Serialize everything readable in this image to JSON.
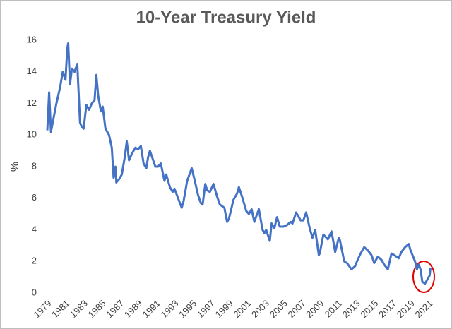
{
  "chart_data": {
    "type": "line",
    "title": "10-Year Treasury Yield",
    "y_label": "%",
    "x": [
      1979.0,
      1979.2,
      1979.4,
      1980.0,
      1980.4,
      1980.7,
      1981.0,
      1981.2,
      1981.3,
      1981.5,
      1981.7,
      1982.0,
      1982.3,
      1982.6,
      1982.8,
      1983.0,
      1983.3,
      1983.6,
      1983.9,
      1984.2,
      1984.4,
      1984.6,
      1984.9,
      1985.1,
      1985.4,
      1985.8,
      1986.1,
      1986.3,
      1986.5,
      1986.6,
      1986.9,
      1987.2,
      1987.5,
      1987.75,
      1988.0,
      1988.3,
      1988.7,
      1989.0,
      1989.3,
      1989.6,
      1989.9,
      1990.1,
      1990.3,
      1990.6,
      1990.9,
      1991.2,
      1991.5,
      1991.9,
      1992.1,
      1992.5,
      1992.8,
      1993.0,
      1993.4,
      1993.8,
      1994.0,
      1994.4,
      1994.9,
      1995.2,
      1995.6,
      1995.9,
      1996.1,
      1996.4,
      1996.6,
      1996.9,
      1997.3,
      1997.7,
      1998.0,
      1998.5,
      1998.8,
      1999.0,
      1999.5,
      1999.9,
      2000.1,
      2000.5,
      2000.9,
      2001.2,
      2001.5,
      2001.8,
      2002.1,
      2002.3,
      2002.7,
      2002.9,
      2003.1,
      2003.5,
      2003.7,
      2004.0,
      2004.3,
      2004.6,
      2005.0,
      2005.4,
      2005.8,
      2006.0,
      2006.4,
      2006.9,
      2007.2,
      2007.5,
      2007.9,
      2008.2,
      2008.5,
      2008.9,
      2009.0,
      2009.4,
      2009.9,
      2010.3,
      2010.7,
      2011.1,
      2011.2,
      2011.7,
      2012.0,
      2012.5,
      2012.9,
      2013.1,
      2013.5,
      2013.9,
      2014.3,
      2014.7,
      2015.0,
      2015.4,
      2015.8,
      2016.1,
      2016.5,
      2016.9,
      2017.2,
      2017.7,
      2018.0,
      2018.4,
      2018.8,
      2019.0,
      2019.5,
      2019.7,
      2019.9,
      2020.1,
      2020.3,
      2020.6,
      2020.9,
      2021.1,
      2021.2
    ],
    "series": [
      {
        "name": "10-Year Treasury Yield",
        "color": "#4472c4",
        "values": [
          10.3,
          12.7,
          10.2,
          12.0,
          13.0,
          14.0,
          13.5,
          15.5,
          15.8,
          13.2,
          14.2,
          14.0,
          14.5,
          10.8,
          10.5,
          10.4,
          11.9,
          11.6,
          12.0,
          12.2,
          13.8,
          12.5,
          11.5,
          11.8,
          10.4,
          10.0,
          9.2,
          7.3,
          8.0,
          7.0,
          7.2,
          7.5,
          8.5,
          9.6,
          8.4,
          8.8,
          9.2,
          9.1,
          9.3,
          8.2,
          7.9,
          8.6,
          9.0,
          8.5,
          8.0,
          8.0,
          8.2,
          7.1,
          7.5,
          6.7,
          6.4,
          6.6,
          6.0,
          5.4,
          5.8,
          7.1,
          7.9,
          7.2,
          6.2,
          5.7,
          5.6,
          6.9,
          6.5,
          6.4,
          6.9,
          6.1,
          5.6,
          5.4,
          4.5,
          4.7,
          5.9,
          6.3,
          6.7,
          6.0,
          5.2,
          5.0,
          5.3,
          4.5,
          5.0,
          5.3,
          4.0,
          3.8,
          4.0,
          3.3,
          4.4,
          4.1,
          4.8,
          4.2,
          4.2,
          4.3,
          4.5,
          4.4,
          5.1,
          4.6,
          4.6,
          5.1,
          4.1,
          3.5,
          4.0,
          2.4,
          2.5,
          3.7,
          3.4,
          3.9,
          2.6,
          3.5,
          3.4,
          2.0,
          1.9,
          1.5,
          1.7,
          2.0,
          2.5,
          2.9,
          2.7,
          2.4,
          1.9,
          2.3,
          2.1,
          1.8,
          1.5,
          2.5,
          2.4,
          2.2,
          2.6,
          2.9,
          3.1,
          2.7,
          2.0,
          1.5,
          1.8,
          1.5,
          0.7,
          0.6,
          0.9,
          1.1,
          1.6
        ]
      }
    ],
    "xlim": [
      1979,
      2021
    ],
    "xticks": [
      1979,
      1981,
      1983,
      1985,
      1987,
      1989,
      1991,
      1993,
      1995,
      1997,
      1999,
      2001,
      2003,
      2005,
      2007,
      2009,
      2011,
      2013,
      2015,
      2017,
      2019,
      2021
    ],
    "ylim": [
      0,
      16
    ],
    "yticks": [
      0,
      2,
      4,
      6,
      8,
      10,
      12,
      14,
      16
    ],
    "grid": false
  }
}
